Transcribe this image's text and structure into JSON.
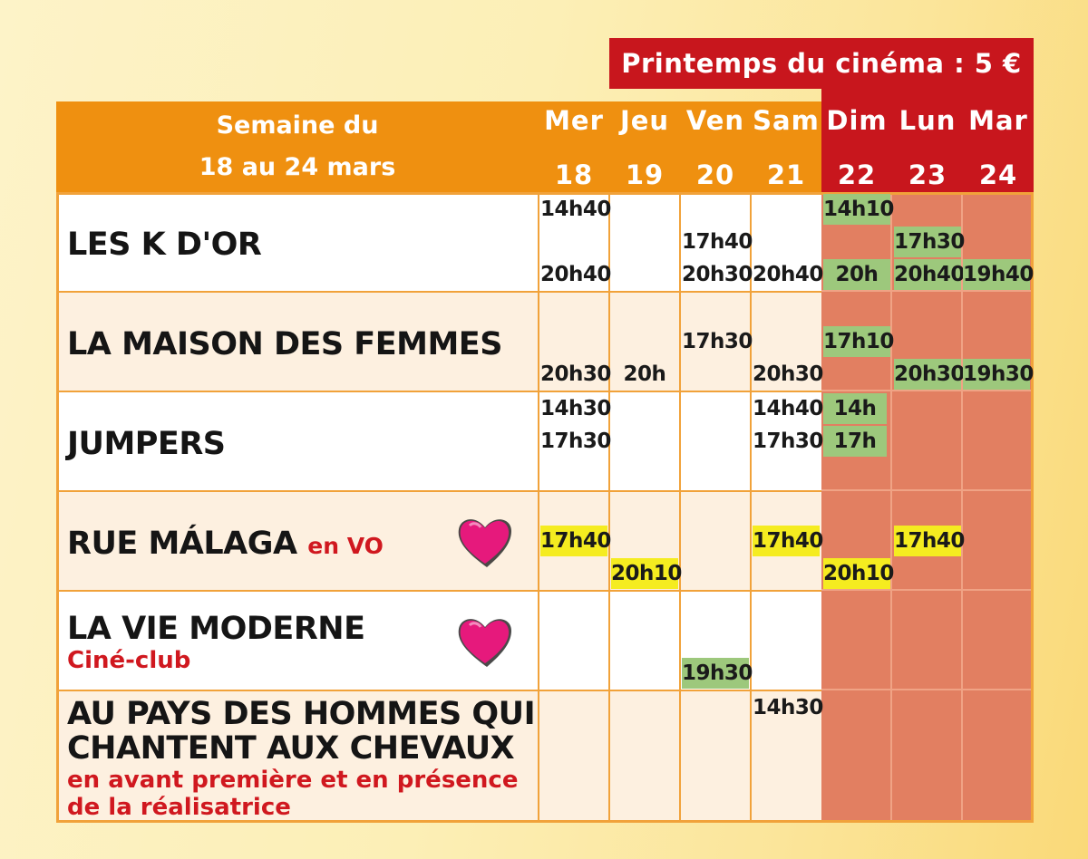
{
  "banner": "Printemps du cinéma : 5 €",
  "week": {
    "line1": "Semaine du",
    "line2": "18 au 24 mars"
  },
  "days": [
    {
      "name": "Mer",
      "num": "18"
    },
    {
      "name": "Jeu",
      "num": "19"
    },
    {
      "name": "Ven",
      "num": "20"
    },
    {
      "name": "Sam",
      "num": "21"
    },
    {
      "name": "Dim",
      "num": "22"
    },
    {
      "name": "Lun",
      "num": "23"
    },
    {
      "name": "Mar",
      "num": "24"
    }
  ],
  "films": [
    {
      "title": "LES K D'OR"
    },
    {
      "title": "LA MAISON DES FEMMES"
    },
    {
      "title": "JUMPERS"
    },
    {
      "title": "RUE MÁLAGA",
      "note": "en VO"
    },
    {
      "title": "LA VIE MODERNE",
      "note": "Ciné-club"
    },
    {
      "title1": "AU PAYS DES HOMMES QUI",
      "title2": "CHANTENT AUX CHEVAUX",
      "note1": "en avant première et en présence",
      "note2": "de la réalisatrice"
    }
  ],
  "times": {
    "f0": {
      "mer_a": "14h40",
      "mer_b": "20h40",
      "ven_a": "17h40",
      "ven_b": "20h30",
      "sam": "20h40",
      "dim_a": "14h10",
      "dim_b": "20h",
      "lun_a": "17h30",
      "lun_b": "20h40",
      "mar": "19h40"
    },
    "f1": {
      "mer": "20h30",
      "jeu": "20h",
      "ven": "17h30",
      "sam": "20h30",
      "dim": "17h10",
      "lun": "20h30",
      "mar": "19h30"
    },
    "f2": {
      "mer_a": "14h30",
      "mer_b": "17h30",
      "sam_a": "14h40",
      "sam_b": "17h30",
      "dim_a": "14h",
      "dim_b": "17h"
    },
    "f3": {
      "mer": "17h40",
      "jeu": "20h10",
      "sam": "17h40",
      "dim": "20h10",
      "lun": "17h40"
    },
    "f4": {
      "ven": "19h30"
    },
    "f5": {
      "sam": "14h30"
    }
  },
  "colors": {
    "header_orange": "#ef9010",
    "promo_red": "#c8161d",
    "weekend_cell": "#e27f61",
    "time_green": "#9dc87c",
    "time_yellow": "#f5ec20",
    "heart": "#e6197c"
  },
  "icons": {
    "favorite": "heart-icon"
  }
}
